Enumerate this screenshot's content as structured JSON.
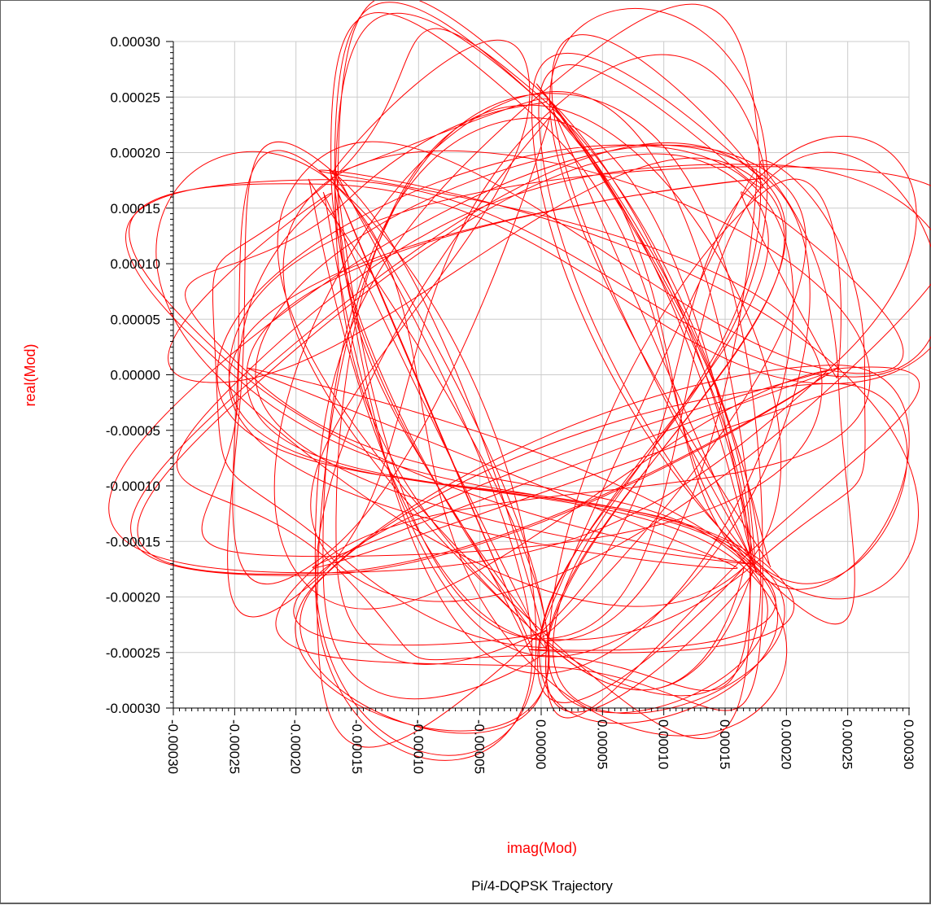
{
  "chart_data": {
    "type": "line",
    "title": "Pi/4-DQPSK Trajectory",
    "xlabel": "imag(Mod)",
    "ylabel": "real(Mod)",
    "xlim": [
      -0.0003,
      0.0003
    ],
    "ylim": [
      -0.0003,
      0.0003
    ],
    "x_ticks": [
      "-0.00030",
      "-0.00025",
      "-0.00020",
      "-0.00015",
      "-0.00010",
      "-0.00005",
      "0.00000",
      "0.00005",
      "0.00010",
      "0.00015",
      "0.00020",
      "0.00025",
      "0.00030"
    ],
    "y_ticks": [
      "0.00030",
      "0.00025",
      "0.00020",
      "0.00015",
      "0.00010",
      "0.00005",
      "0.00000",
      "-0.00005",
      "-0.00010",
      "-0.00015",
      "-0.00020",
      "-0.00025",
      "-0.00030"
    ],
    "grid": true,
    "series": [
      {
        "color": "#ff0000",
        "style": "dense trajectory of a pi/4-DQPSK modulated signal with amplitude up to ~0.00026",
        "symbol_points": [
          [
            0.00025,
            0.0
          ],
          [
            0.000177,
            0.000177
          ],
          [
            0.0,
            0.00025
          ],
          [
            -0.000177,
            0.000177
          ],
          [
            -0.00025,
            0.0
          ],
          [
            -0.000177,
            -0.000177
          ],
          [
            0.0,
            -0.00025
          ],
          [
            0.000177,
            -0.000177
          ]
        ]
      }
    ]
  }
}
